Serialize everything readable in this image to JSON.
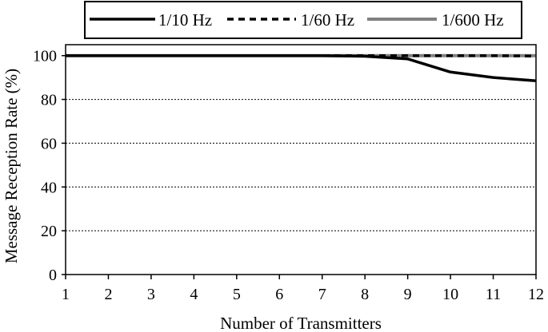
{
  "chart_data": {
    "type": "line",
    "xlabel": "Number of Transmitters",
    "ylabel": "Message Reception Rate (%)",
    "x": [
      1,
      2,
      3,
      4,
      5,
      6,
      7,
      8,
      9,
      10,
      11,
      12
    ],
    "xlim": [
      1,
      12
    ],
    "ylim": [
      0,
      105
    ],
    "yticks": [
      0,
      20,
      40,
      60,
      80,
      100
    ],
    "grid": "horizontal dotted",
    "legend_position": "top, outside plot",
    "series": [
      {
        "name": "1/10 Hz",
        "style": "solid",
        "color": "#000000",
        "values": [
          100,
          100,
          100,
          100,
          100,
          100,
          100,
          99.7,
          98.5,
          92.5,
          90,
          88.5
        ]
      },
      {
        "name": "1/60 Hz",
        "style": "dashed",
        "color": "#000000",
        "values": [
          100,
          100,
          100,
          100,
          100,
          100,
          100,
          100,
          100,
          100,
          100,
          99.8
        ]
      },
      {
        "name": "1/600 Hz",
        "style": "solid",
        "color": "#808080",
        "values": [
          100,
          100,
          100,
          100,
          100,
          100,
          100,
          100,
          100,
          100,
          100,
          100
        ]
      }
    ]
  }
}
